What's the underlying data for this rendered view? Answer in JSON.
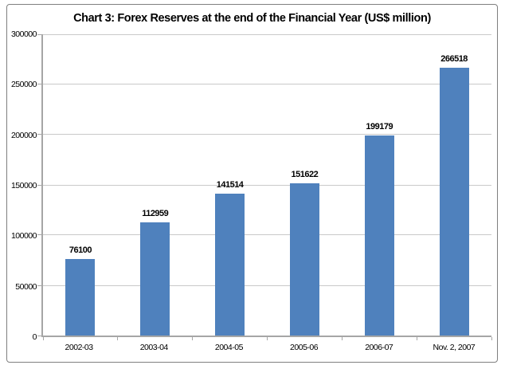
{
  "chart_data": {
    "type": "bar",
    "title": "Chart 3: Forex Reserves at the end of the Financial Year (US$ million)",
    "categories": [
      "2002-03",
      "2003-04",
      "2004-05",
      "2005-06",
      "2006-07",
      "Nov. 2, 2007"
    ],
    "values": [
      76100,
      112959,
      141514,
      151622,
      199179,
      266518
    ],
    "data_labels": [
      "76100",
      "112959",
      "141514",
      "151622",
      "199179",
      "266518"
    ],
    "xlabel": "",
    "ylabel": "",
    "ylim": [
      0,
      300000
    ],
    "ytick_interval": 50000,
    "ytick_labels": [
      "0",
      "50000",
      "100000",
      "150000",
      "200000",
      "250000",
      "300000"
    ],
    "grid": true,
    "legend": false,
    "data_labels_position": "above-bars",
    "colors": {
      "bar": "#4f81bd",
      "gridline": "#c9c9c9",
      "axis": "#a6a6a6",
      "frame_border": "#7f7f7f",
      "background": "#ffffff",
      "text": "#000000"
    }
  }
}
